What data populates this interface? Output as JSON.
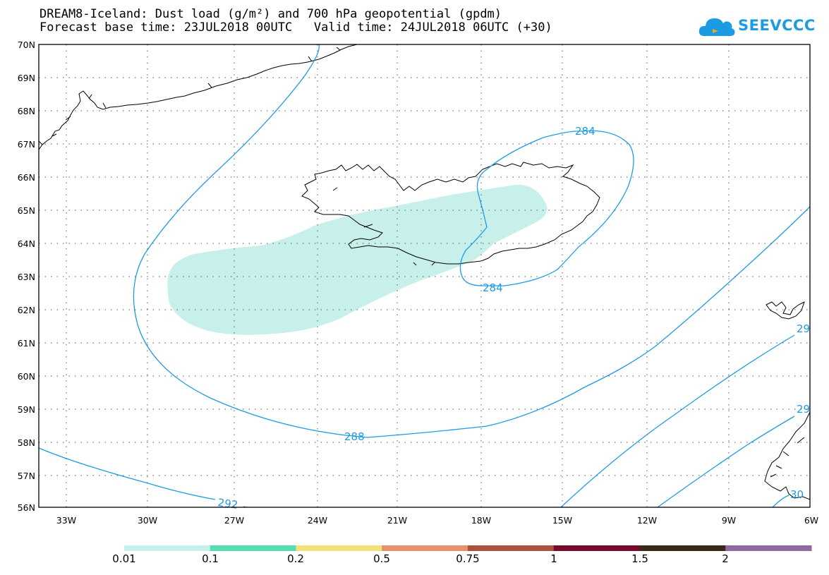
{
  "title_line1": "DREAM8-Iceland: Dust load (g/m²) and 700 hPa geopotential (gpdm)",
  "title_line2": "Forecast base time: 23JUL2018 00UTC   Valid time: 24JUL2018 06UTC (+30)",
  "logo": {
    "text": "SEEVCCC",
    "icon": "cloud-icon",
    "color": "#1a9be2"
  },
  "map": {
    "lat_labels": [
      "70N",
      "69N",
      "68N",
      "67N",
      "66N",
      "65N",
      "64N",
      "63N",
      "62N",
      "61N",
      "60N",
      "59N",
      "58N",
      "57N",
      "56N"
    ],
    "lon_labels": [
      "33W",
      "30W",
      "27W",
      "24W",
      "21W",
      "18W",
      "15W",
      "12W",
      "9W",
      "6W"
    ],
    "contour_labels": [
      "284",
      "284",
      "288",
      "292",
      "29",
      "29",
      "30"
    ],
    "contour_color": "#1d9ce4",
    "dust_fill_color": "#c8f0ea",
    "coastline_color": "#000000"
  },
  "legend": {
    "labels": [
      "0.01",
      "0.1",
      "0.2",
      "0.5",
      "0.75",
      "1",
      "1.5",
      "2"
    ],
    "colors": [
      "#c8f0ea",
      "#55ddb4",
      "#f3e27a",
      "#e8906a",
      "#a8523e",
      "#7a0a2c",
      "#3a2818",
      "#8f6aa0"
    ]
  }
}
